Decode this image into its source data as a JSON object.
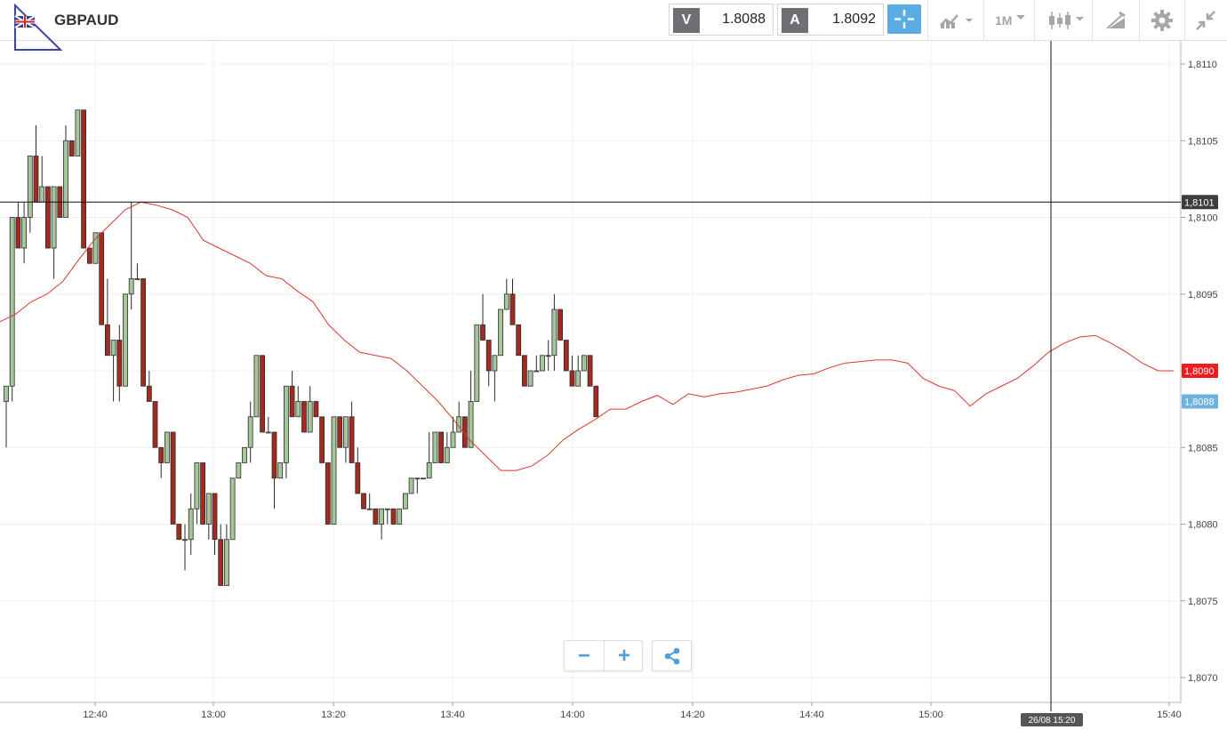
{
  "header": {
    "symbol": "GBPAUD",
    "bid_tag": "V",
    "bid_value": "1.8088",
    "ask_tag": "A",
    "ask_value": "1.8092",
    "timeframe": "1M",
    "icons": [
      "uk-flag-icon",
      "crosshair-icon",
      "chart-type-icon",
      "candlestick-icon",
      "drawing-tools-icon",
      "gear-icon",
      "collapse-icon"
    ]
  },
  "colors": {
    "bull": "#a4c69a",
    "bear": "#a32a1e",
    "ma": "#e0342c",
    "accent": "#5aace2",
    "last_price": "#6db3df",
    "ma_label": "#ee1c1c"
  },
  "chart_data": {
    "type": "candlestick",
    "title": "",
    "xlabel": "",
    "ylabel": "",
    "ylim": [
      1.8068,
      1.8112
    ],
    "x_ticks": [
      "12:40",
      "13:00",
      "13:20",
      "13:40",
      "14:00",
      "14:20",
      "14:40",
      "15:00",
      "15:40"
    ],
    "y_ticks": [
      "1,8070",
      "1,8075",
      "1,8080",
      "1,8085",
      "1,8090",
      "1,8095",
      "1,8100",
      "1,8105",
      "1,8110"
    ],
    "crosshair": {
      "price": 1.8101,
      "price_label": "1,8101",
      "time_label": "26/08 15:20"
    },
    "last_price": {
      "price": 1.8088,
      "label": "1,8088"
    },
    "moving_average": {
      "current": 1.809,
      "label": "1,8090",
      "points": [
        [
          0,
          1.80932
        ],
        [
          2,
          1.80937
        ],
        [
          4,
          1.80945
        ],
        [
          6,
          1.8095
        ],
        [
          8,
          1.80958
        ],
        [
          10,
          1.80972
        ],
        [
          12,
          1.80985
        ],
        [
          14,
          1.80995
        ],
        [
          16,
          1.81005
        ],
        [
          18,
          1.8101
        ],
        [
          20,
          1.81008
        ],
        [
          22,
          1.81005
        ],
        [
          24,
          1.81
        ],
        [
          26,
          1.80985
        ],
        [
          28,
          1.8098
        ],
        [
          30,
          1.80975
        ],
        [
          32,
          1.8097
        ],
        [
          34,
          1.80962
        ],
        [
          36,
          1.8096
        ],
        [
          38,
          1.80952
        ],
        [
          40,
          1.80945
        ],
        [
          42,
          1.8093
        ],
        [
          44,
          1.8092
        ],
        [
          46,
          1.80912
        ],
        [
          48,
          1.8091
        ],
        [
          50,
          1.80908
        ],
        [
          52,
          1.809
        ],
        [
          54,
          1.8089
        ],
        [
          56,
          1.8088
        ],
        [
          58,
          1.80868
        ],
        [
          60,
          1.80855
        ],
        [
          62,
          1.80845
        ],
        [
          64,
          1.80835
        ],
        [
          66,
          1.80835
        ],
        [
          68,
          1.80838
        ],
        [
          70,
          1.80845
        ],
        [
          72,
          1.80855
        ],
        [
          74,
          1.80862
        ],
        [
          76,
          1.80868
        ],
        [
          78,
          1.80875
        ],
        [
          80,
          1.80875
        ],
        [
          82,
          1.8088
        ],
        [
          84,
          1.80884
        ],
        [
          86,
          1.80878
        ],
        [
          88,
          1.80885
        ],
        [
          90,
          1.80883
        ],
        [
          92,
          1.80885
        ],
        [
          94,
          1.80886
        ],
        [
          96,
          1.80888
        ],
        [
          98,
          1.8089
        ],
        [
          100,
          1.80894
        ],
        [
          102,
          1.80897
        ],
        [
          104,
          1.80898
        ],
        [
          106,
          1.80902
        ],
        [
          108,
          1.80905
        ],
        [
          110,
          1.80906
        ],
        [
          112,
          1.80907
        ],
        [
          114,
          1.80907
        ],
        [
          116,
          1.80905
        ],
        [
          118,
          1.80895
        ],
        [
          120,
          1.8089
        ],
        [
          122,
          1.80887
        ],
        [
          124,
          1.80877
        ],
        [
          126,
          1.80885
        ],
        [
          128,
          1.8089
        ],
        [
          130,
          1.80895
        ],
        [
          132,
          1.80903
        ],
        [
          134,
          1.80912
        ],
        [
          136,
          1.80918
        ],
        [
          138,
          1.80922
        ],
        [
          140,
          1.80923
        ],
        [
          142,
          1.80918
        ],
        [
          144,
          1.80912
        ],
        [
          146,
          1.80905
        ],
        [
          148,
          1.809
        ],
        [
          150,
          1.809
        ]
      ]
    },
    "candles": [
      [
        1.8088,
        1.8089,
        1.8085,
        1.8089
      ],
      [
        1.8089,
        1.81,
        1.8088,
        1.81
      ],
      [
        1.81,
        1.8101,
        1.8098,
        1.8098
      ],
      [
        1.8098,
        1.8101,
        1.8097,
        1.81
      ],
      [
        1.81,
        1.8104,
        1.8099,
        1.8104
      ],
      [
        1.8104,
        1.8106,
        1.8101,
        1.8101
      ],
      [
        1.8101,
        1.8104,
        1.8101,
        1.8102
      ],
      [
        1.8102,
        1.8102,
        1.8098,
        1.8098
      ],
      [
        1.8098,
        1.8102,
        1.8096,
        1.8102
      ],
      [
        1.8102,
        1.8102,
        1.81,
        1.81
      ],
      [
        1.81,
        1.8106,
        1.81,
        1.8105
      ],
      [
        1.8105,
        1.8105,
        1.8104,
        1.8104
      ],
      [
        1.8104,
        1.8107,
        1.8104,
        1.8107
      ],
      [
        1.8107,
        1.8107,
        1.8098,
        1.8098
      ],
      [
        1.8098,
        1.8098,
        1.8097,
        1.8097
      ],
      [
        1.8097,
        1.8099,
        1.8097,
        1.8099
      ],
      [
        1.8099,
        1.8099,
        1.8093,
        1.8093
      ],
      [
        1.8093,
        1.8096,
        1.8091,
        1.8091
      ],
      [
        1.8091,
        1.8092,
        1.8088,
        1.8092
      ],
      [
        1.8092,
        1.8093,
        1.8088,
        1.8089
      ],
      [
        1.8089,
        1.8095,
        1.8089,
        1.8095
      ],
      [
        1.8095,
        1.8101,
        1.8094,
        1.8096
      ],
      [
        1.8096,
        1.8097,
        1.8096,
        1.8096
      ],
      [
        1.8096,
        1.8096,
        1.8089,
        1.8089
      ],
      [
        1.8089,
        1.809,
        1.8088,
        1.8088
      ],
      [
        1.8088,
        1.8088,
        1.8085,
        1.8085
      ],
      [
        1.8085,
        1.8085,
        1.8083,
        1.8084
      ],
      [
        1.8084,
        1.8086,
        1.8084,
        1.8086
      ],
      [
        1.8086,
        1.8086,
        1.808,
        1.808
      ],
      [
        1.808,
        1.808,
        1.8079,
        1.8079
      ],
      [
        1.8079,
        1.808,
        1.8077,
        1.8079
      ],
      [
        1.8079,
        1.8082,
        1.8078,
        1.8081
      ],
      [
        1.8081,
        1.8084,
        1.808,
        1.8084
      ],
      [
        1.8084,
        1.8084,
        1.808,
        1.808
      ],
      [
        1.808,
        1.8082,
        1.8079,
        1.8082
      ],
      [
        1.8082,
        1.8082,
        1.8078,
        1.8079
      ],
      [
        1.8079,
        1.808,
        1.8076,
        1.8076
      ],
      [
        1.8076,
        1.808,
        1.8076,
        1.8079
      ],
      [
        1.8079,
        1.8083,
        1.8079,
        1.8083
      ],
      [
        1.8083,
        1.8084,
        1.8083,
        1.8084
      ],
      [
        1.8084,
        1.8085,
        1.8084,
        1.8085
      ],
      [
        1.8085,
        1.8088,
        1.8084,
        1.8087
      ],
      [
        1.8087,
        1.8091,
        1.8087,
        1.8091
      ],
      [
        1.8091,
        1.8091,
        1.8086,
        1.8086
      ],
      [
        1.8086,
        1.8087,
        1.8086,
        1.8086
      ],
      [
        1.8086,
        1.8086,
        1.8081,
        1.8083
      ],
      [
        1.8083,
        1.8084,
        1.8083,
        1.8084
      ],
      [
        1.8084,
        1.8089,
        1.8083,
        1.8089
      ],
      [
        1.8089,
        1.809,
        1.8087,
        1.8087
      ],
      [
        1.8087,
        1.8089,
        1.8087,
        1.8088
      ],
      [
        1.8088,
        1.8088,
        1.8086,
        1.8086
      ],
      [
        1.8086,
        1.8089,
        1.8086,
        1.8088
      ],
      [
        1.8088,
        1.8088,
        1.8087,
        1.8087
      ],
      [
        1.8087,
        1.8087,
        1.8084,
        1.8084
      ],
      [
        1.8084,
        1.8084,
        1.808,
        1.808
      ],
      [
        1.808,
        1.8087,
        1.808,
        1.8087
      ],
      [
        1.8087,
        1.8087,
        1.8085,
        1.8085
      ],
      [
        1.8085,
        1.8087,
        1.8084,
        1.8087
      ],
      [
        1.8087,
        1.8088,
        1.8084,
        1.8084
      ],
      [
        1.8084,
        1.8085,
        1.8082,
        1.8082
      ],
      [
        1.8082,
        1.8082,
        1.8081,
        1.8081
      ],
      [
        1.8081,
        1.8082,
        1.8081,
        1.8081
      ],
      [
        1.8081,
        1.8081,
        1.808,
        1.808
      ],
      [
        1.808,
        1.8081,
        1.8079,
        1.8081
      ],
      [
        1.8081,
        1.8081,
        1.808,
        1.8081
      ],
      [
        1.8081,
        1.8081,
        1.808,
        1.808
      ],
      [
        1.808,
        1.8081,
        1.808,
        1.8081
      ],
      [
        1.8081,
        1.8082,
        1.8081,
        1.8082
      ],
      [
        1.8082,
        1.8083,
        1.8082,
        1.8083
      ],
      [
        1.8083,
        1.8083,
        1.8082,
        1.8083
      ],
      [
        1.8083,
        1.8083,
        1.8083,
        1.8083
      ],
      [
        1.8083,
        1.8086,
        1.8083,
        1.8084
      ],
      [
        1.8084,
        1.8086,
        1.8084,
        1.8086
      ],
      [
        1.8086,
        1.8086,
        1.8084,
        1.8084
      ],
      [
        1.8084,
        1.8086,
        1.8084,
        1.8085
      ],
      [
        1.8085,
        1.8087,
        1.8085,
        1.8086
      ],
      [
        1.8086,
        1.8088,
        1.8086,
        1.8087
      ],
      [
        1.8087,
        1.8087,
        1.8085,
        1.8085
      ],
      [
        1.8085,
        1.809,
        1.8085,
        1.8088
      ],
      [
        1.8088,
        1.8093,
        1.8088,
        1.8093
      ],
      [
        1.8093,
        1.8095,
        1.8092,
        1.8092
      ],
      [
        1.8092,
        1.8092,
        1.8089,
        1.809
      ],
      [
        1.809,
        1.8091,
        1.8088,
        1.8091
      ],
      [
        1.8091,
        1.8094,
        1.8091,
        1.8094
      ],
      [
        1.8094,
        1.8096,
        1.8094,
        1.8095
      ],
      [
        1.8095,
        1.8096,
        1.8093,
        1.8093
      ],
      [
        1.8093,
        1.8093,
        1.8091,
        1.8091
      ],
      [
        1.8091,
        1.8091,
        1.8089,
        1.8089
      ],
      [
        1.8089,
        1.809,
        1.8089,
        1.809
      ],
      [
        1.809,
        1.8091,
        1.809,
        1.809
      ],
      [
        1.809,
        1.8091,
        1.809,
        1.8091
      ],
      [
        1.8091,
        1.8092,
        1.809,
        1.8091
      ],
      [
        1.8091,
        1.8095,
        1.809,
        1.8094
      ],
      [
        1.8094,
        1.8094,
        1.8092,
        1.8092
      ],
      [
        1.8092,
        1.8092,
        1.809,
        1.809
      ],
      [
        1.809,
        1.8091,
        1.8089,
        1.8089
      ],
      [
        1.8089,
        1.8091,
        1.8089,
        1.809
      ],
      [
        1.809,
        1.8091,
        1.809,
        1.8091
      ],
      [
        1.8091,
        1.8091,
        1.8089,
        1.8089
      ],
      [
        1.8089,
        1.8089,
        1.8087,
        1.8087
      ]
    ]
  }
}
